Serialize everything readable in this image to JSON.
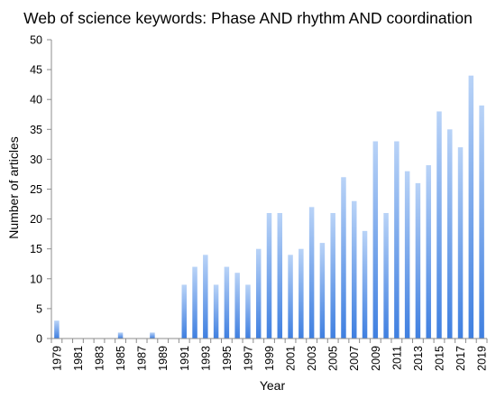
{
  "chart_data": {
    "type": "bar",
    "title": "Web of science keywords: Phase AND rhythm AND coordination",
    "xlabel": "Year",
    "ylabel": "Number of articles",
    "ylim": [
      0,
      50
    ],
    "yticks": [
      "0",
      "5",
      "10",
      "15",
      "20",
      "25",
      "30",
      "35",
      "40",
      "45",
      "50"
    ],
    "grid": false,
    "legend": "none",
    "categories": [
      "1979",
      "1980",
      "1981",
      "1982",
      "1983",
      "1984",
      "1985",
      "1986",
      "1987",
      "1988",
      "1989",
      "1990",
      "1991",
      "1992",
      "1993",
      "1994",
      "1995",
      "1996",
      "1997",
      "1998",
      "1999",
      "2000",
      "2001",
      "2002",
      "2003",
      "2004",
      "2005",
      "2006",
      "2007",
      "2008",
      "2009",
      "2010",
      "2011",
      "2012",
      "2013",
      "2014",
      "2015",
      "2016",
      "2017",
      "2018",
      "2019"
    ],
    "x_tick_labels": [
      "1979",
      "1981",
      "1983",
      "1985",
      "1987",
      "1989",
      "1991",
      "1993",
      "1995",
      "1997",
      "1999",
      "2001",
      "2003",
      "2005",
      "2007",
      "2009",
      "2011",
      "2013",
      "2015",
      "2017",
      "2019"
    ],
    "values": [
      3,
      0,
      0,
      0,
      0,
      0,
      1,
      0,
      0,
      1,
      0,
      0,
      9,
      12,
      14,
      9,
      12,
      11,
      9,
      15,
      21,
      21,
      14,
      15,
      22,
      16,
      21,
      27,
      23,
      18,
      33,
      21,
      33,
      28,
      26,
      29,
      38,
      35,
      32,
      44,
      39
    ],
    "colors": {
      "bar_top": "#b9d3f7",
      "bar_bottom": "#3f7fe0",
      "axis": "#8c8c8c"
    }
  }
}
